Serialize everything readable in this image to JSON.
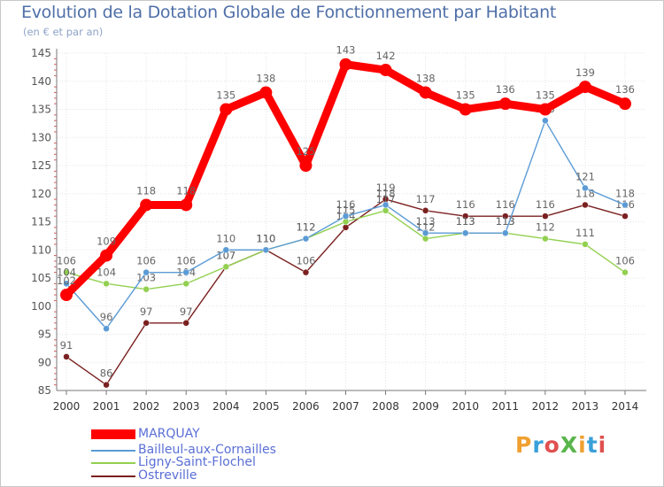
{
  "title": "Evolution de la Dotation Globale de Fonctionnement par Habitant",
  "subtitle": "(en € et par an)",
  "brand": {
    "text": "ProXiti",
    "colors": [
      "#f0a030",
      "#3aa0d8",
      "#e05050",
      "#59b54b",
      "#f0a030",
      "#3aa0d8",
      "#e05050"
    ]
  },
  "chart_data": {
    "type": "line",
    "x": [
      "2000",
      "2001",
      "2002",
      "2003",
      "2004",
      "2005",
      "2006",
      "2007",
      "2008",
      "2009",
      "2010",
      "2011",
      "2012",
      "2013",
      "2014"
    ],
    "ylim": [
      85,
      145
    ],
    "yticks": [
      85,
      90,
      95,
      100,
      105,
      110,
      115,
      120,
      125,
      130,
      135,
      140,
      145
    ],
    "grid": true,
    "legend_position": "bottom-left",
    "series": [
      {
        "name": "MARQUAY",
        "color": "#ff0000",
        "values": [
          102,
          109,
          118,
          118,
          135,
          138,
          125,
          143,
          142,
          138,
          135,
          136,
          135,
          139,
          136
        ]
      },
      {
        "name": "Bailleul-aux-Cornailles",
        "color": "#5b9bd5",
        "values": [
          104,
          96,
          106,
          106,
          110,
          110,
          112,
          116,
          118,
          113,
          113,
          113,
          133,
          121,
          118
        ]
      },
      {
        "name": "Ligny-Saint-Flochel",
        "color": "#92d050",
        "values": [
          106,
          104,
          103,
          104,
          107,
          110,
          112,
          115,
          117,
          112,
          113,
          113,
          112,
          111,
          106
        ]
      },
      {
        "name": "Ostreville",
        "color": "#7b2020",
        "values": [
          91,
          86,
          97,
          97,
          107,
          110,
          106,
          114,
          119,
          117,
          116,
          116,
          116,
          118,
          116
        ]
      }
    ]
  }
}
